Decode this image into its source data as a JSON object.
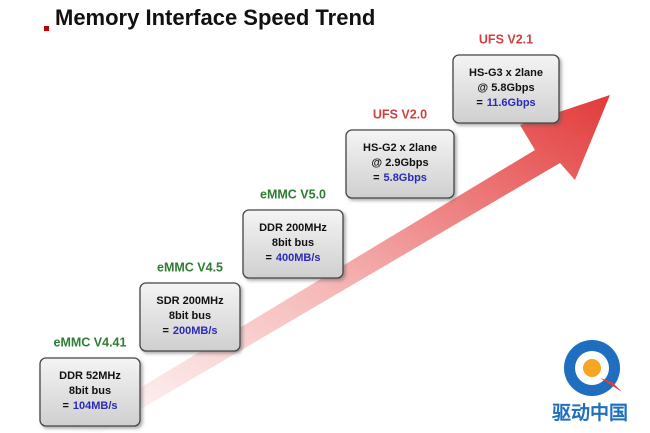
{
  "title": "Memory Interface Speed Trend",
  "steps": [
    {
      "version": "eMMC V4.41",
      "version_color": "#2e7d32",
      "lines": [
        "DDR 52MHz",
        "8bit bus"
      ],
      "speed_prefix": "=",
      "speed": "104MB/s"
    },
    {
      "version": "eMMC V4.5",
      "version_color": "#2e7d32",
      "lines": [
        "SDR 200MHz",
        "8bit bus"
      ],
      "speed_prefix": "=",
      "speed": "200MB/s"
    },
    {
      "version": "eMMC V5.0",
      "version_color": "#2e7d32",
      "lines": [
        "DDR 200MHz",
        "8bit bus"
      ],
      "speed_prefix": "=",
      "speed": "400MB/s"
    },
    {
      "version": "UFS V2.0",
      "version_color": "#d04040",
      "lines": [
        "HS-G2 x 2lane",
        "@ 2.9Gbps"
      ],
      "speed_prefix": "=",
      "speed": "5.8Gbps"
    },
    {
      "version": "UFS V2.1",
      "version_color": "#d04040",
      "lines": [
        "HS-G3 x 2lane",
        "@ 5.8Gbps"
      ],
      "speed_prefix": "=",
      "speed": "11.6Gbps"
    }
  ],
  "watermark": "驱动中国"
}
